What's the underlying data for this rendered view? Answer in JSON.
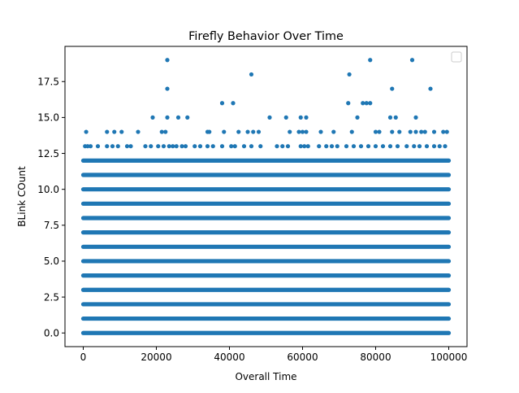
{
  "chart_data": {
    "type": "scatter",
    "title": "Firefly Behavior Over Time",
    "xlabel": "Overall Time",
    "ylabel": "BLink COunt",
    "xlim": [
      -5000,
      105000
    ],
    "ylim": [
      -0.95,
      19.95
    ],
    "x_ticks": [
      0,
      20000,
      40000,
      60000,
      80000,
      100000
    ],
    "x_tick_labels": [
      "0",
      "20000",
      "40000",
      "60000",
      "80000",
      "100000"
    ],
    "y_ticks": [
      0,
      2.5,
      5,
      7.5,
      10,
      12.5,
      15,
      17.5
    ],
    "y_tick_labels": [
      "0.0",
      "2.5",
      "5.0",
      "7.5",
      "10.0",
      "12.5",
      "15.0",
      "17.5"
    ],
    "grid": false,
    "legend": {
      "placement": "top-right",
      "entries": []
    },
    "marker_color": "#1f77b4",
    "series": [
      {
        "dense_bands": [
          {
            "y": 0,
            "x_range": [
              0,
              100000
            ]
          },
          {
            "y": 1,
            "x_range": [
              0,
              100000
            ]
          },
          {
            "y": 2,
            "x_range": [
              0,
              100000
            ]
          },
          {
            "y": 3,
            "x_range": [
              0,
              100000
            ]
          },
          {
            "y": 4,
            "x_range": [
              0,
              100000
            ]
          },
          {
            "y": 5,
            "x_range": [
              0,
              100000
            ]
          },
          {
            "y": 6,
            "x_range": [
              0,
              100000
            ]
          },
          {
            "y": 7,
            "x_range": [
              0,
              100000
            ]
          },
          {
            "y": 8,
            "x_range": [
              0,
              100000
            ]
          },
          {
            "y": 9,
            "x_range": [
              0,
              100000
            ]
          },
          {
            "y": 10,
            "x_range": [
              0,
              100000
            ]
          },
          {
            "y": 11,
            "x_range": [
              0,
              100000
            ]
          },
          {
            "y": 12,
            "x_range": [
              0,
              100000
            ]
          }
        ],
        "sparse_points": [
          [
            500,
            13
          ],
          [
            1200,
            13
          ],
          [
            2000,
            13
          ],
          [
            4000,
            13
          ],
          [
            6500,
            13
          ],
          [
            8000,
            13
          ],
          [
            9500,
            13
          ],
          [
            12000,
            13
          ],
          [
            13000,
            13
          ],
          [
            17000,
            13
          ],
          [
            18500,
            13
          ],
          [
            20500,
            13
          ],
          [
            22000,
            13
          ],
          [
            23500,
            13
          ],
          [
            24500,
            13
          ],
          [
            25500,
            13
          ],
          [
            27000,
            13
          ],
          [
            28000,
            13
          ],
          [
            30500,
            13
          ],
          [
            32000,
            13
          ],
          [
            34000,
            13
          ],
          [
            35500,
            13
          ],
          [
            38000,
            13
          ],
          [
            40500,
            13
          ],
          [
            41500,
            13
          ],
          [
            44000,
            13
          ],
          [
            46000,
            13
          ],
          [
            48500,
            13
          ],
          [
            53000,
            13
          ],
          [
            54500,
            13
          ],
          [
            56000,
            13
          ],
          [
            59500,
            13
          ],
          [
            60500,
            13
          ],
          [
            61500,
            13
          ],
          [
            64500,
            13
          ],
          [
            66500,
            13
          ],
          [
            68000,
            13
          ],
          [
            69500,
            13
          ],
          [
            72000,
            13
          ],
          [
            74000,
            13
          ],
          [
            76000,
            13
          ],
          [
            78000,
            13
          ],
          [
            80000,
            13
          ],
          [
            82000,
            13
          ],
          [
            84000,
            13
          ],
          [
            86000,
            13
          ],
          [
            88500,
            13
          ],
          [
            90500,
            13
          ],
          [
            92000,
            13
          ],
          [
            94000,
            13
          ],
          [
            96000,
            13
          ],
          [
            97500,
            13
          ],
          [
            99000,
            13
          ],
          [
            800,
            14
          ],
          [
            6500,
            14
          ],
          [
            8500,
            14
          ],
          [
            10500,
            14
          ],
          [
            15000,
            14
          ],
          [
            21500,
            14
          ],
          [
            22500,
            14
          ],
          [
            34000,
            14
          ],
          [
            34500,
            14
          ],
          [
            38500,
            14
          ],
          [
            42500,
            14
          ],
          [
            45000,
            14
          ],
          [
            46500,
            14
          ],
          [
            48000,
            14
          ],
          [
            56500,
            14
          ],
          [
            59000,
            14
          ],
          [
            60000,
            14
          ],
          [
            61000,
            14
          ],
          [
            65000,
            14
          ],
          [
            68500,
            14
          ],
          [
            73500,
            14
          ],
          [
            80000,
            14
          ],
          [
            81000,
            14
          ],
          [
            84500,
            14
          ],
          [
            86500,
            14
          ],
          [
            89500,
            14
          ],
          [
            91000,
            14
          ],
          [
            92500,
            14
          ],
          [
            93500,
            14
          ],
          [
            96000,
            14
          ],
          [
            98500,
            14
          ],
          [
            99500,
            14
          ],
          [
            19000,
            15
          ],
          [
            23000,
            15
          ],
          [
            26000,
            15
          ],
          [
            28500,
            15
          ],
          [
            51000,
            15
          ],
          [
            55500,
            15
          ],
          [
            59500,
            15
          ],
          [
            61000,
            15
          ],
          [
            75000,
            15
          ],
          [
            84000,
            15
          ],
          [
            85500,
            15
          ],
          [
            91000,
            15
          ],
          [
            38000,
            16
          ],
          [
            41000,
            16
          ],
          [
            72500,
            16
          ],
          [
            76500,
            16
          ],
          [
            77500,
            16
          ],
          [
            78500,
            16
          ],
          [
            23000,
            17
          ],
          [
            84500,
            17
          ],
          [
            95000,
            17
          ],
          [
            46000,
            18
          ],
          [
            72800,
            18
          ],
          [
            23000,
            19
          ],
          [
            78500,
            19
          ],
          [
            90000,
            19
          ]
        ]
      }
    ]
  }
}
